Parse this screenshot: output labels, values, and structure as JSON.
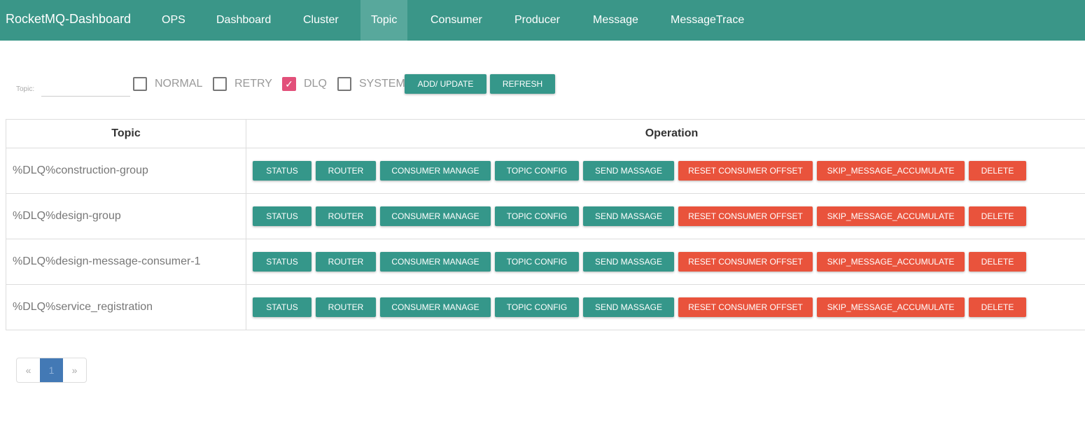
{
  "nav": {
    "brand": "RocketMQ-Dashboard",
    "items": [
      "OPS",
      "Dashboard",
      "Cluster",
      "Topic",
      "Consumer",
      "Producer",
      "Message",
      "MessageTrace"
    ],
    "active": "Topic"
  },
  "filters": {
    "topic_label": "Topic:",
    "topic_value": "",
    "checkboxes": [
      {
        "label": "NORMAL",
        "checked": false
      },
      {
        "label": "RETRY",
        "checked": false
      },
      {
        "label": "DLQ",
        "checked": true
      },
      {
        "label": "SYSTEM",
        "checked": false
      }
    ],
    "add_update": "ADD/ UPDATE",
    "refresh": "REFRESH"
  },
  "table": {
    "headers": [
      "Topic",
      "Operation"
    ],
    "operations": [
      "STATUS",
      "ROUTER",
      "CONSUMER MANAGE",
      "TOPIC CONFIG",
      "SEND MASSAGE",
      "RESET CONSUMER OFFSET",
      "SKIP_MESSAGE_ACCUMULATE",
      "DELETE"
    ],
    "rows": [
      "%DLQ%construction-group",
      "%DLQ%design-group",
      "%DLQ%design-message-consumer-1",
      "%DLQ%service_registration"
    ]
  },
  "pagination": {
    "prev": "«",
    "current": "1",
    "next": "»"
  },
  "colors": {
    "primary": "#35978a",
    "danger": "#e9533c",
    "checkbox": "#e2507a",
    "page_active": "#4379b5"
  }
}
